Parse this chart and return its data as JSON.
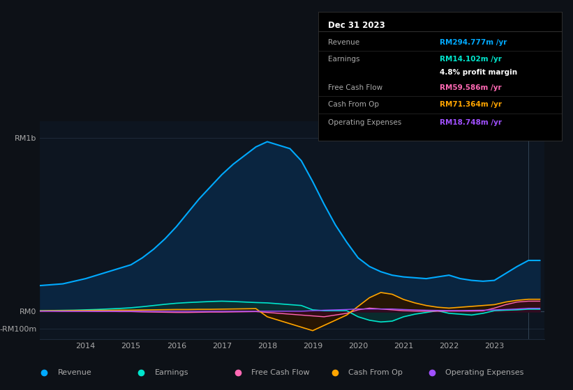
{
  "bg_color": "#0d1117",
  "plot_bg_color": "#0d1520",
  "text_color": "#aaaaaa",
  "title_color": "#ffffff",
  "grid_color": "#1e2a3a",
  "years": [
    2013.0,
    2013.25,
    2013.5,
    2013.75,
    2014.0,
    2014.25,
    2014.5,
    2014.75,
    2015.0,
    2015.25,
    2015.5,
    2015.75,
    2016.0,
    2016.25,
    2016.5,
    2016.75,
    2017.0,
    2017.25,
    2017.5,
    2017.75,
    2018.0,
    2018.25,
    2018.5,
    2018.75,
    2019.0,
    2019.25,
    2019.5,
    2019.75,
    2020.0,
    2020.25,
    2020.5,
    2020.75,
    2021.0,
    2021.25,
    2021.5,
    2021.75,
    2022.0,
    2022.25,
    2022.5,
    2022.75,
    2023.0,
    2023.25,
    2023.5,
    2023.75,
    2024.0
  ],
  "revenue": [
    150,
    155,
    160,
    175,
    190,
    210,
    230,
    250,
    270,
    310,
    360,
    420,
    490,
    570,
    650,
    720,
    790,
    850,
    900,
    950,
    980,
    960,
    940,
    870,
    750,
    620,
    500,
    400,
    310,
    260,
    230,
    210,
    200,
    195,
    190,
    200,
    210,
    190,
    180,
    175,
    180,
    220,
    260,
    295,
    295
  ],
  "earnings": [
    5,
    6,
    7,
    8,
    10,
    12,
    15,
    18,
    22,
    28,
    35,
    42,
    48,
    52,
    55,
    58,
    60,
    58,
    55,
    52,
    50,
    45,
    40,
    35,
    10,
    5,
    5,
    5,
    -30,
    -50,
    -60,
    -55,
    -30,
    -15,
    -5,
    5,
    -10,
    -15,
    -20,
    -10,
    5,
    8,
    10,
    14,
    14
  ],
  "free_cash_flow": [
    3,
    3,
    2,
    2,
    2,
    1,
    1,
    0,
    0,
    -2,
    -3,
    -4,
    -5,
    -5,
    -4,
    -3,
    -3,
    -2,
    -1,
    0,
    -5,
    -10,
    -15,
    -20,
    -25,
    -30,
    -20,
    -10,
    10,
    20,
    15,
    10,
    5,
    3,
    2,
    2,
    3,
    3,
    3,
    4,
    20,
    40,
    55,
    60,
    60
  ],
  "cash_from_op": [
    4,
    5,
    5,
    6,
    6,
    7,
    7,
    8,
    8,
    9,
    10,
    11,
    12,
    12,
    13,
    13,
    14,
    15,
    16,
    17,
    -30,
    -50,
    -70,
    -90,
    -110,
    -80,
    -50,
    -20,
    30,
    80,
    110,
    100,
    70,
    50,
    35,
    25,
    20,
    25,
    30,
    35,
    40,
    55,
    65,
    71,
    71
  ],
  "operating_expenses": [
    2,
    2,
    2,
    2,
    2,
    2,
    2,
    2,
    2,
    2,
    2,
    2,
    2,
    2,
    2,
    2,
    2,
    2,
    2,
    2,
    2,
    2,
    2,
    2,
    5,
    8,
    10,
    12,
    15,
    15,
    15,
    15,
    12,
    10,
    8,
    7,
    6,
    6,
    7,
    8,
    10,
    12,
    15,
    19,
    19
  ],
  "revenue_color": "#00aaff",
  "revenue_fill": "#0a2540",
  "earnings_color": "#00e5cc",
  "earnings_fill": "#0a3030",
  "free_cash_flow_color": "#ff69b4",
  "free_cash_flow_fill": "#3a0a20",
  "cash_from_op_color": "#ffa500",
  "cash_from_op_fill": "#2a1500",
  "operating_expenses_color": "#a050ff",
  "operating_expenses_fill": "#1a0a30",
  "ylim_top": 1100,
  "ylim_bottom": -160,
  "ytick_labels": [
    "RM1b",
    "RM0",
    "-RM100m"
  ],
  "ytick_values": [
    1000,
    0,
    -100
  ],
  "xtick_labels": [
    "2014",
    "2015",
    "2016",
    "2017",
    "2018",
    "2019",
    "2020",
    "2021",
    "2022",
    "2023"
  ],
  "xtick_values": [
    2014,
    2015,
    2016,
    2017,
    2018,
    2019,
    2020,
    2021,
    2022,
    2023
  ],
  "tooltip_title": "Dec 31 2023",
  "tooltip_rows": [
    {
      "label": "Revenue",
      "value": "RM294.777m /yr",
      "value_color": "#00aaff"
    },
    {
      "label": "Earnings",
      "value": "RM14.102m /yr",
      "value_color": "#00e5cc"
    },
    {
      "label": "",
      "value": "4.8% profit margin",
      "value_color": "#ffffff"
    },
    {
      "label": "Free Cash Flow",
      "value": "RM59.586m /yr",
      "value_color": "#ff69b4"
    },
    {
      "label": "Cash From Op",
      "value": "RM71.364m /yr",
      "value_color": "#ffa500"
    },
    {
      "label": "Operating Expenses",
      "value": "RM18.748m /yr",
      "value_color": "#a050ff"
    }
  ],
  "legend_items": [
    {
      "label": "Revenue",
      "color": "#00aaff"
    },
    {
      "label": "Earnings",
      "color": "#00e5cc"
    },
    {
      "label": "Free Cash Flow",
      "color": "#ff69b4"
    },
    {
      "label": "Cash From Op",
      "color": "#ffa500"
    },
    {
      "label": "Operating Expenses",
      "color": "#a050ff"
    }
  ]
}
